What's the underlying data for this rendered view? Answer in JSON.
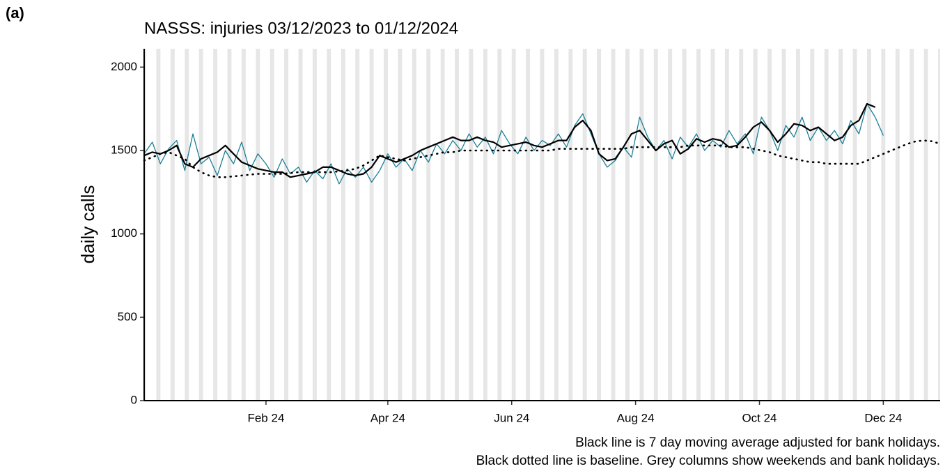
{
  "panel_tag": "(a)",
  "chart_data": {
    "type": "line",
    "title": "NASSS: injuries 03/12/2023 to 01/12/2024",
    "ylabel": "daily calls",
    "caption": [
      "Black line is 7 day moving average adjusted for bank holidays.",
      "Black dotted line is baseline. Grey columns show weekends and bank holidays."
    ],
    "x": [
      "2023-12-03",
      "2023-12-07",
      "2023-12-11",
      "2023-12-15",
      "2023-12-19",
      "2023-12-23",
      "2023-12-27",
      "2023-12-31",
      "2024-01-04",
      "2024-01-08",
      "2024-01-12",
      "2024-01-16",
      "2024-01-20",
      "2024-01-24",
      "2024-01-28",
      "2024-02-01",
      "2024-02-05",
      "2024-02-09",
      "2024-02-13",
      "2024-02-17",
      "2024-02-21",
      "2024-02-25",
      "2024-02-29",
      "2024-03-04",
      "2024-03-08",
      "2024-03-12",
      "2024-03-16",
      "2024-03-20",
      "2024-03-24",
      "2024-03-28",
      "2024-04-01",
      "2024-04-05",
      "2024-04-09",
      "2024-04-13",
      "2024-04-17",
      "2024-04-21",
      "2024-04-25",
      "2024-04-29",
      "2024-05-03",
      "2024-05-07",
      "2024-05-11",
      "2024-05-15",
      "2024-05-19",
      "2024-05-23",
      "2024-05-27",
      "2024-05-31",
      "2024-06-04",
      "2024-06-08",
      "2024-06-12",
      "2024-06-16",
      "2024-06-20",
      "2024-06-24",
      "2024-06-28",
      "2024-07-02",
      "2024-07-06",
      "2024-07-10",
      "2024-07-14",
      "2024-07-18",
      "2024-07-22",
      "2024-07-26",
      "2024-07-30",
      "2024-08-03",
      "2024-08-07",
      "2024-08-11",
      "2024-08-15",
      "2024-08-19",
      "2024-08-23",
      "2024-08-27",
      "2024-08-31",
      "2024-09-04",
      "2024-09-08",
      "2024-09-12",
      "2024-09-16",
      "2024-09-20",
      "2024-09-24",
      "2024-09-28",
      "2024-10-02",
      "2024-10-06",
      "2024-10-10",
      "2024-10-14",
      "2024-10-18",
      "2024-10-22",
      "2024-10-26",
      "2024-10-30",
      "2024-11-03",
      "2024-11-07",
      "2024-11-11",
      "2024-11-15",
      "2024-11-19",
      "2024-11-23",
      "2024-11-27",
      "2024-12-01",
      "2024-12-05",
      "2024-12-09",
      "2024-12-13",
      "2024-12-17",
      "2024-12-21",
      "2024-12-25",
      "2024-12-29"
    ],
    "series": [
      {
        "color": "#1a7f96",
        "width": 1.3,
        "values": [
          1480,
          1550,
          1420,
          1510,
          1560,
          1380,
          1600,
          1420,
          1460,
          1350,
          1500,
          1420,
          1550,
          1380,
          1480,
          1420,
          1340,
          1450,
          1360,
          1400,
          1310,
          1380,
          1330,
          1420,
          1300,
          1390,
          1340,
          1400,
          1310,
          1380,
          1480,
          1400,
          1450,
          1380,
          1500,
          1430,
          1540,
          1480,
          1560,
          1500,
          1600,
          1520,
          1580,
          1480,
          1620,
          1540,
          1480,
          1580,
          1500,
          1560,
          1530,
          1600,
          1520,
          1650,
          1720,
          1600,
          1480,
          1400,
          1440,
          1520,
          1460,
          1700,
          1580,
          1500,
          1560,
          1450,
          1580,
          1520,
          1600,
          1500,
          1560,
          1520,
          1620,
          1540,
          1600,
          1480,
          1700,
          1620,
          1500,
          1650,
          1580,
          1700,
          1560,
          1640,
          1560,
          1620,
          1540,
          1680,
          1600,
          1780,
          1700,
          1590,
          null,
          null,
          null,
          null,
          null,
          null,
          null
        ]
      },
      {
        "color": "#000000",
        "width": 2.2,
        "values": [
          1470,
          1490,
          1480,
          1500,
          1530,
          1420,
          1400,
          1450,
          1470,
          1490,
          1530,
          1480,
          1430,
          1410,
          1390,
          1380,
          1370,
          1370,
          1340,
          1350,
          1360,
          1370,
          1400,
          1400,
          1380,
          1360,
          1350,
          1360,
          1400,
          1470,
          1450,
          1430,
          1450,
          1470,
          1500,
          1520,
          1540,
          1560,
          1580,
          1560,
          1560,
          1580,
          1560,
          1550,
          1520,
          1530,
          1540,
          1550,
          1530,
          1520,
          1540,
          1560,
          1560,
          1640,
          1680,
          1620,
          1480,
          1440,
          1450,
          1520,
          1600,
          1620,
          1560,
          1500,
          1540,
          1560,
          1480,
          1510,
          1570,
          1550,
          1570,
          1560,
          1520,
          1530,
          1580,
          1640,
          1670,
          1620,
          1550,
          1600,
          1660,
          1650,
          1620,
          1640,
          1600,
          1560,
          1580,
          1650,
          1680,
          1780,
          1760,
          null,
          null,
          null,
          null,
          null,
          null,
          null,
          null
        ]
      },
      {
        "color": "#000000",
        "width": 2,
        "dotted": true,
        "values": [
          1440,
          1460,
          1480,
          1490,
          1470,
          1450,
          1400,
          1370,
          1350,
          1340,
          1340,
          1345,
          1350,
          1355,
          1360,
          1360,
          1360,
          1360,
          1365,
          1370,
          1370,
          1370,
          1370,
          1370,
          1375,
          1380,
          1390,
          1410,
          1440,
          1470,
          1460,
          1450,
          1440,
          1450,
          1460,
          1470,
          1480,
          1490,
          1490,
          1500,
          1500,
          1500,
          1500,
          1500,
          1500,
          1500,
          1500,
          1500,
          1500,
          1500,
          1500,
          1510,
          1510,
          1510,
          1510,
          1510,
          1510,
          1510,
          1510,
          1510,
          1520,
          1520,
          1520,
          1520,
          1520,
          1520,
          1520,
          1530,
          1530,
          1530,
          1530,
          1530,
          1520,
          1520,
          1520,
          1510,
          1500,
          1490,
          1470,
          1460,
          1450,
          1440,
          1430,
          1430,
          1420,
          1420,
          1420,
          1420,
          1420,
          1440,
          1460,
          1480,
          1500,
          1520,
          1540,
          1555,
          1560,
          1555,
          1540
        ]
      }
    ],
    "xlim": [
      "2023-12-03",
      "2024-12-29"
    ],
    "xticks": [
      {
        "value": "2024-02-01",
        "label": "Feb 24"
      },
      {
        "value": "2024-04-01",
        "label": "Apr 24"
      },
      {
        "value": "2024-06-01",
        "label": "Jun 24"
      },
      {
        "value": "2024-08-01",
        "label": "Aug 24"
      },
      {
        "value": "2024-10-01",
        "label": "Oct 24"
      },
      {
        "value": "2024-12-01",
        "label": "Dec 24"
      }
    ],
    "ylim": [
      0,
      2110
    ],
    "yticks": [
      0,
      500,
      1000,
      1500,
      2000
    ],
    "weekend_shading": true,
    "shade_color": "#e6e6e6"
  }
}
